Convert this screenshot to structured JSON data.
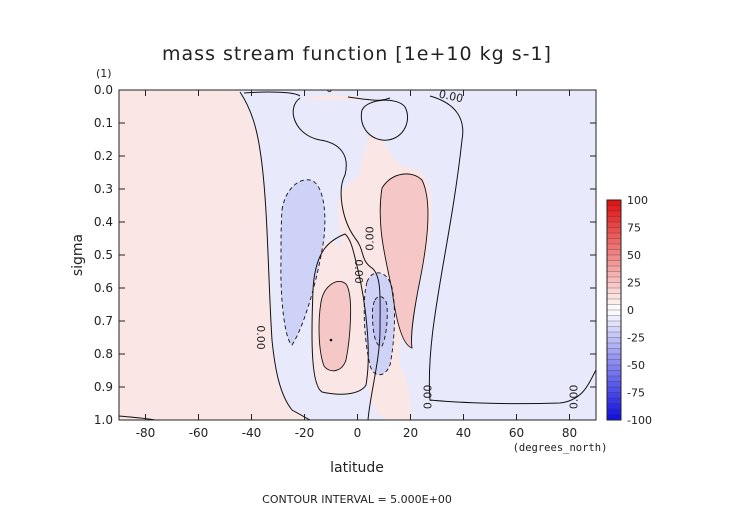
{
  "chart_data": {
    "type": "heatmap",
    "title": "mass stream function [1e+10 kg s-1]",
    "ylabel_unit": "(1)",
    "ylabel": "sigma",
    "xlabel": "latitude",
    "xunit": "(degrees_north)",
    "footer": "CONTOUR INTERVAL = 5.000E+00",
    "xlim": [
      -90,
      90
    ],
    "ylim": [
      0.0,
      1.0
    ],
    "y_inverted": true,
    "x_ticks": [
      -80,
      -60,
      -40,
      -20,
      0,
      20,
      40,
      60,
      80
    ],
    "x_tick_labels": [
      "-80",
      "-60",
      "-40",
      "-20",
      "0",
      "20",
      "40",
      "60",
      "80"
    ],
    "y_ticks": [
      0.0,
      0.1,
      0.2,
      0.3,
      0.4,
      0.5,
      0.6,
      0.7,
      0.8,
      0.9,
      1.0
    ],
    "y_tick_labels": [
      "0.0",
      "0.1",
      "0.2",
      "0.3",
      "0.4",
      "0.5",
      "0.6",
      "0.7",
      "0.8",
      "0.9",
      "1.0"
    ],
    "contour_interval": 5.0,
    "colorbar": {
      "levels": [
        100,
        75,
        50,
        25,
        0,
        -25,
        -50,
        -75,
        -100
      ],
      "labels": [
        "100",
        "75",
        "50",
        "25",
        "0",
        "-25",
        "-50",
        "-75",
        "-100"
      ],
      "min": -100,
      "max": 100,
      "colormap": "blue-white-red"
    },
    "colors": {
      "positive": "#fbe6e6",
      "negative": "#e8e9fb",
      "strong_positive": "#f5c7c7",
      "strong_negative": "#cfd2f7",
      "peak_positive": "#f1b3b3",
      "peak_negative": "#bcc0f1"
    },
    "contour_labels": [
      {
        "text": "0.00",
        "lat": -14,
        "sigma": 0.0
      },
      {
        "text": "0.00",
        "lat": 35,
        "sigma": 0.03
      },
      {
        "text": "0.00",
        "lat": 6,
        "sigma": 0.45
      },
      {
        "text": "0.00",
        "lat": -1,
        "sigma": 0.55
      },
      {
        "text": "0.00",
        "lat": -38,
        "sigma": 0.75
      },
      {
        "text": "0.00",
        "lat": 28,
        "sigma": 0.93
      },
      {
        "text": "0.00",
        "lat": 83,
        "sigma": 0.93
      }
    ],
    "regions": [
      {
        "sign": "positive",
        "description": "background",
        "lat_range": [
          -90,
          90
        ]
      },
      {
        "sign": "negative",
        "description": "tropical cell boundary region",
        "lat_range": [
          -40,
          28
        ]
      },
      {
        "sign": "negative",
        "description": "eastern extratropics",
        "lat_range": [
          28,
          90
        ]
      },
      {
        "sign": "negative",
        "description": "upper cell",
        "center": [
          10,
          0.08
        ]
      },
      {
        "sign": "negative",
        "description": "southern side cell",
        "center": [
          -22,
          0.55
        ]
      },
      {
        "sign": "positive",
        "description": "northern side cell",
        "center": [
          15,
          0.5
        ]
      },
      {
        "sign": "positive",
        "description": "lower positive cell",
        "center": [
          -10,
          0.76
        ]
      },
      {
        "sign": "negative",
        "description": "lower negative cell",
        "center": [
          8,
          0.7
        ]
      }
    ]
  }
}
